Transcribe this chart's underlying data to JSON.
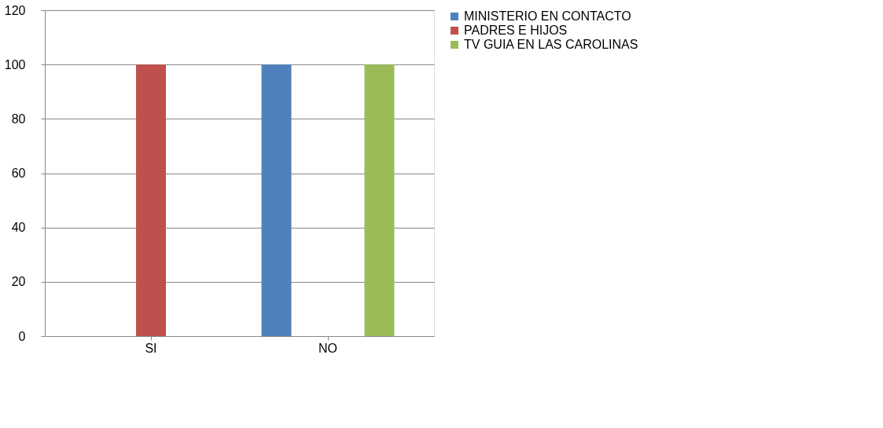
{
  "chart_data": {
    "type": "bar",
    "categories": [
      "SI",
      "NO"
    ],
    "series": [
      {
        "name": "MINISTERIO EN CONTACTO",
        "color": "#4f81bd",
        "values": [
          0,
          100
        ]
      },
      {
        "name": "PADRES E HIJOS",
        "color": "#c0504d",
        "values": [
          100,
          0
        ]
      },
      {
        "name": "TV GUIA EN LAS CAROLINAS",
        "color": "#9bbb59",
        "values": [
          0,
          100
        ]
      }
    ],
    "ylim": [
      0,
      120
    ],
    "yticks": [
      0,
      20,
      40,
      60,
      80,
      100,
      120
    ],
    "grid": "y",
    "legend": "right"
  }
}
